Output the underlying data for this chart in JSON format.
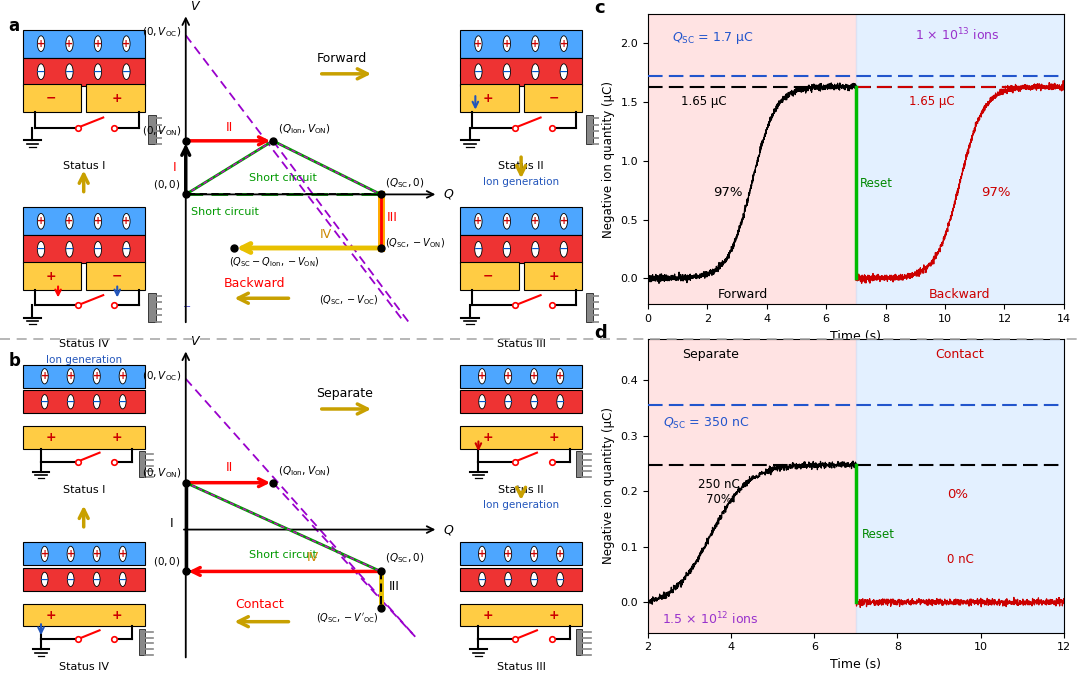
{
  "panel_c": {
    "xlim": [
      0,
      14
    ],
    "ylim": [
      -0.22,
      2.25
    ],
    "yticks": [
      0.0,
      0.5,
      1.0,
      1.5,
      2.0
    ],
    "xticks": [
      0,
      2,
      4,
      6,
      8,
      10,
      12,
      14
    ],
    "forward_bg": [
      0,
      7
    ],
    "backward_bg": [
      7,
      14
    ],
    "forward_color": "#ffcccc",
    "backward_color": "#cce5ff",
    "blue_dashed_y": 1.72,
    "black_dashed_y": 1.63,
    "red_dashed_y": 1.63,
    "sig_fwd_mid": 3.5,
    "sig_fwd_k": 2.5,
    "sig_fwd_ymax": 1.63,
    "sig_bwd_mid": 10.5,
    "sig_bwd_k": 2.5,
    "sig_bwd_ymax": 1.63,
    "reset_x": 7.0
  },
  "panel_d": {
    "xlim": [
      2,
      12
    ],
    "ylim": [
      -0.055,
      0.475
    ],
    "yticks": [
      0.0,
      0.1,
      0.2,
      0.3,
      0.4
    ],
    "xticks": [
      2,
      4,
      6,
      8,
      10,
      12
    ],
    "separate_bg": [
      2,
      7
    ],
    "contact_bg": [
      7,
      12
    ],
    "separate_color": "#ffcccc",
    "contact_color": "#cce5ff",
    "blue_dashed_y": 0.355,
    "black_dashed_y": 0.248,
    "sig_mid": 3.5,
    "sig_k": 2.2,
    "sig_ymax": 0.248,
    "reset_x": 7.0
  }
}
